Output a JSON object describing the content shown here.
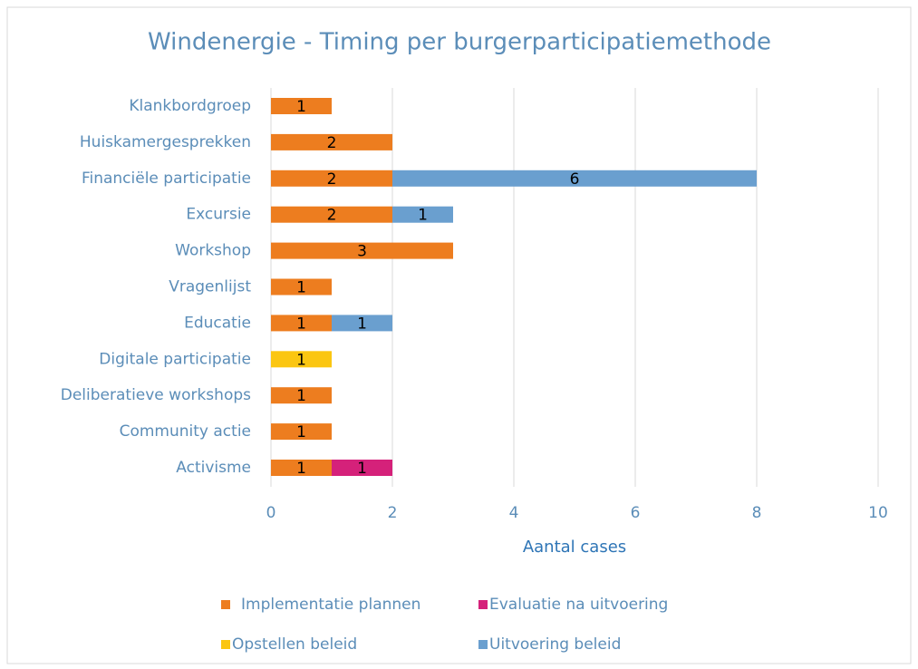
{
  "chart_data": {
    "type": "bar",
    "orientation": "horizontal",
    "stacked": true,
    "title": "Windenergie - Timing per burgerparticipatiemethode",
    "x_label": "Aantal cases",
    "categories": [
      "Klankbordgroep",
      "Huiskamergesprekken",
      "Financiële participatie",
      "Excursie",
      "Workshop",
      "Vragenlijst",
      "Educatie",
      "Digitale participatie",
      "Deliberatieve workshops",
      "Community actie",
      "Activisme"
    ],
    "series": [
      {
        "name": "Implementatie plannen",
        "color": "#ed7d1f",
        "values": [
          1,
          2,
          2,
          2,
          3,
          1,
          1,
          null,
          1,
          1,
          1
        ]
      },
      {
        "name": "Evaluatie na uitvoering",
        "color": "#d5217a",
        "values": [
          null,
          null,
          null,
          null,
          null,
          null,
          null,
          null,
          null,
          null,
          1
        ]
      },
      {
        "name": "Opstellen beleid",
        "color": "#fbc611",
        "values": [
          null,
          null,
          null,
          null,
          null,
          null,
          null,
          1,
          null,
          null,
          null
        ]
      },
      {
        "name": "Uitvoering beleid",
        "color": "#6a9fcf",
        "values": [
          null,
          null,
          6,
          1,
          null,
          null,
          1,
          null,
          null,
          null,
          null
        ]
      }
    ],
    "xlim": [
      0,
      10
    ],
    "xticks": [
      0,
      2,
      4,
      6,
      8,
      10
    ],
    "grid": true,
    "legend": "bottom"
  }
}
